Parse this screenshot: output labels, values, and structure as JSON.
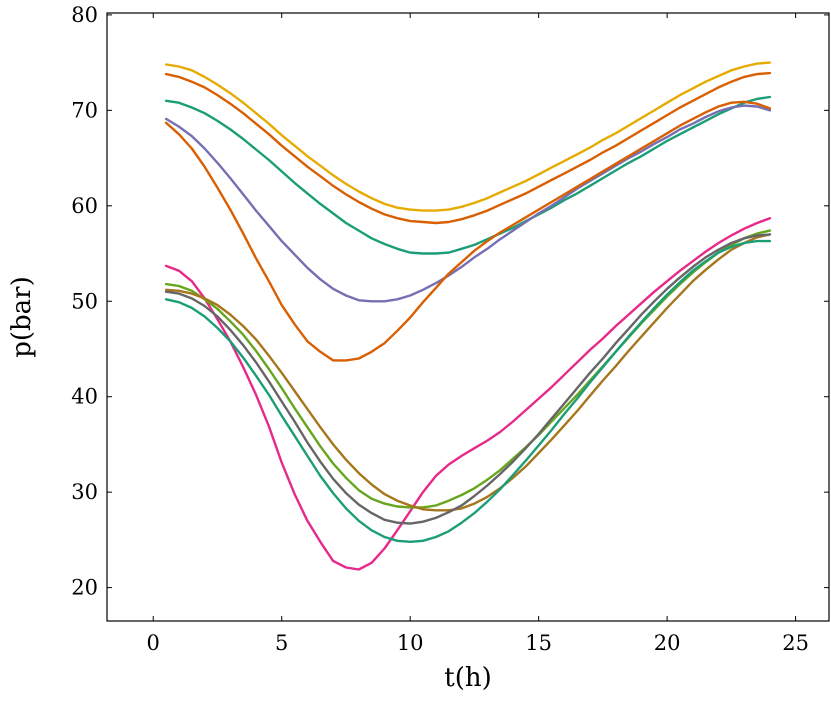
{
  "chart_data": {
    "type": "line",
    "title": "",
    "xlabel": "t(h)",
    "ylabel": "p(bar)",
    "xlim": [
      -1.8,
      26.3
    ],
    "ylim": [
      16.5,
      80.2
    ],
    "xticks": [
      0,
      5,
      10,
      15,
      20,
      25
    ],
    "yticks": [
      20,
      30,
      40,
      50,
      60,
      70,
      80
    ],
    "grid": false,
    "legend": "none",
    "x": [
      0.5,
      1,
      1.5,
      2,
      2.5,
      3,
      3.5,
      4,
      4.5,
      5,
      5.5,
      6,
      6.5,
      7,
      7.5,
      8,
      8.5,
      9,
      9.5,
      10,
      10.5,
      11,
      11.5,
      12,
      12.5,
      13,
      13.5,
      14,
      14.5,
      15,
      15.5,
      16,
      16.5,
      17,
      17.5,
      18,
      18.5,
      19,
      19.5,
      20,
      20.5,
      21,
      21.5,
      22,
      22.5,
      23,
      23.5,
      24
    ],
    "series": [
      {
        "color": "#e6ab02",
        "values": [
          74.8,
          74.6,
          74.2,
          73.5,
          72.7,
          71.8,
          70.8,
          69.7,
          68.6,
          67.4,
          66.3,
          65.2,
          64.2,
          63.2,
          62.3,
          61.5,
          60.8,
          60.2,
          59.8,
          59.6,
          59.5,
          59.5,
          59.6,
          59.9,
          60.3,
          60.8,
          61.4,
          62.0,
          62.6,
          63.3,
          64.0,
          64.7,
          65.4,
          66.1,
          66.9,
          67.6,
          68.4,
          69.2,
          70.0,
          70.8,
          71.6,
          72.3,
          73.0,
          73.6,
          74.2,
          74.6,
          74.9,
          75.0
        ]
      },
      {
        "color": "#d95f02",
        "values": [
          73.8,
          73.5,
          73.0,
          72.4,
          71.6,
          70.7,
          69.7,
          68.6,
          67.5,
          66.3,
          65.2,
          64.1,
          63.1,
          62.1,
          61.2,
          60.4,
          59.7,
          59.1,
          58.7,
          58.4,
          58.3,
          58.2,
          58.3,
          58.6,
          59.0,
          59.5,
          60.1,
          60.7,
          61.3,
          62.0,
          62.7,
          63.4,
          64.1,
          64.8,
          65.6,
          66.3,
          67.1,
          67.9,
          68.7,
          69.5,
          70.3,
          71.0,
          71.7,
          72.4,
          73.0,
          73.5,
          73.8,
          73.9
        ]
      },
      {
        "color": "#1b9e77",
        "values": [
          71.0,
          70.8,
          70.3,
          69.7,
          68.9,
          68.0,
          67.0,
          65.9,
          64.8,
          63.6,
          62.4,
          61.3,
          60.2,
          59.2,
          58.2,
          57.4,
          56.6,
          56.0,
          55.5,
          55.1,
          55.0,
          55.0,
          55.1,
          55.5,
          55.9,
          56.5,
          57.1,
          57.7,
          58.4,
          59.1,
          59.8,
          60.6,
          61.3,
          62.1,
          62.9,
          63.7,
          64.5,
          65.2,
          66.0,
          66.8,
          67.5,
          68.2,
          68.9,
          69.6,
          70.2,
          70.8,
          71.2,
          71.4
        ]
      },
      {
        "color": "#7570b3",
        "values": [
          69.1,
          68.3,
          67.3,
          66.0,
          64.5,
          62.9,
          61.2,
          59.5,
          57.9,
          56.3,
          54.9,
          53.5,
          52.3,
          51.3,
          50.6,
          50.1,
          50.0,
          50.0,
          50.2,
          50.6,
          51.2,
          51.9,
          52.7,
          53.6,
          54.6,
          55.5,
          56.5,
          57.4,
          58.3,
          59.2,
          60.0,
          60.9,
          61.8,
          62.6,
          63.4,
          64.2,
          65.0,
          65.7,
          66.5,
          67.2,
          68.0,
          68.6,
          69.3,
          69.9,
          70.3,
          70.5,
          70.4,
          70.0
        ]
      },
      {
        "color": "#d95f02",
        "values": [
          68.7,
          67.5,
          66.0,
          64.1,
          61.9,
          59.6,
          57.1,
          54.5,
          52.1,
          49.6,
          47.6,
          45.8,
          44.7,
          43.8,
          43.8,
          44.0,
          44.7,
          45.6,
          46.9,
          48.3,
          49.9,
          51.4,
          52.9,
          54.1,
          55.3,
          56.3,
          57.2,
          58.0,
          58.8,
          59.6,
          60.4,
          61.2,
          62.0,
          62.8,
          63.6,
          64.4,
          65.2,
          66.0,
          66.8,
          67.6,
          68.4,
          69.1,
          69.8,
          70.4,
          70.8,
          70.9,
          70.7,
          70.2
        ]
      },
      {
        "color": "#e7298a",
        "values": [
          53.7,
          53.2,
          52.1,
          50.3,
          48.1,
          45.8,
          43.1,
          40.2,
          36.9,
          33.1,
          29.8,
          27.0,
          24.8,
          22.8,
          22.1,
          21.9,
          22.6,
          24.1,
          26.0,
          28.0,
          30.0,
          31.7,
          32.9,
          33.8,
          34.6,
          35.4,
          36.3,
          37.4,
          38.6,
          39.8,
          41.0,
          42.3,
          43.6,
          44.9,
          46.1,
          47.4,
          48.6,
          49.8,
          51.0,
          52.1,
          53.2,
          54.2,
          55.2,
          56.1,
          56.9,
          57.6,
          58.2,
          58.7
        ]
      },
      {
        "color": "#66a61e",
        "values": [
          51.8,
          51.6,
          51.1,
          50.2,
          49.2,
          47.9,
          46.5,
          44.8,
          42.9,
          40.9,
          38.8,
          36.8,
          34.8,
          33.0,
          31.5,
          30.2,
          29.3,
          28.8,
          28.5,
          28.4,
          28.4,
          28.6,
          29.1,
          29.7,
          30.4,
          31.3,
          32.3,
          33.5,
          34.7,
          36.0,
          37.4,
          38.8,
          40.2,
          41.7,
          43.2,
          44.7,
          46.2,
          47.7,
          49.1,
          50.5,
          51.8,
          53.0,
          54.1,
          55.1,
          55.9,
          56.6,
          57.1,
          57.4
        ]
      },
      {
        "color": "#a6761d",
        "values": [
          51.2,
          51.1,
          50.8,
          50.3,
          49.6,
          48.6,
          47.4,
          46.0,
          44.3,
          42.5,
          40.6,
          38.7,
          36.8,
          35.0,
          33.4,
          32.0,
          30.8,
          29.8,
          29.1,
          28.6,
          28.2,
          28.1,
          28.1,
          28.3,
          28.8,
          29.5,
          30.4,
          31.5,
          32.7,
          34.1,
          35.5,
          37.0,
          38.5,
          40.1,
          41.7,
          43.2,
          44.8,
          46.3,
          47.8,
          49.3,
          50.7,
          52.1,
          53.3,
          54.4,
          55.4,
          56.1,
          56.7,
          57.0
        ]
      },
      {
        "color": "#666666",
        "values": [
          51.0,
          50.8,
          50.3,
          49.5,
          48.4,
          47.0,
          45.4,
          43.6,
          41.6,
          39.5,
          37.4,
          35.2,
          33.2,
          31.4,
          29.9,
          28.7,
          27.8,
          27.1,
          26.8,
          26.7,
          26.9,
          27.3,
          27.9,
          28.6,
          29.6,
          30.7,
          31.9,
          33.2,
          34.6,
          36.1,
          37.7,
          39.3,
          40.9,
          42.5,
          44.0,
          45.6,
          47.1,
          48.6,
          50.0,
          51.3,
          52.5,
          53.6,
          54.6,
          55.4,
          56.1,
          56.6,
          56.9,
          57.0
        ]
      },
      {
        "color": "#1b9e77",
        "values": [
          50.2,
          49.9,
          49.3,
          48.4,
          47.2,
          45.8,
          44.1,
          42.2,
          40.2,
          38.0,
          35.9,
          33.8,
          31.7,
          29.9,
          28.3,
          27.0,
          26.0,
          25.3,
          24.9,
          24.8,
          24.9,
          25.3,
          25.9,
          26.8,
          27.8,
          29.0,
          30.3,
          31.8,
          33.3,
          34.9,
          36.5,
          38.2,
          39.8,
          41.5,
          43.1,
          44.7,
          46.3,
          47.8,
          49.3,
          50.7,
          52.0,
          53.2,
          54.2,
          55.1,
          55.7,
          56.1,
          56.3,
          56.3
        ]
      }
    ]
  }
}
